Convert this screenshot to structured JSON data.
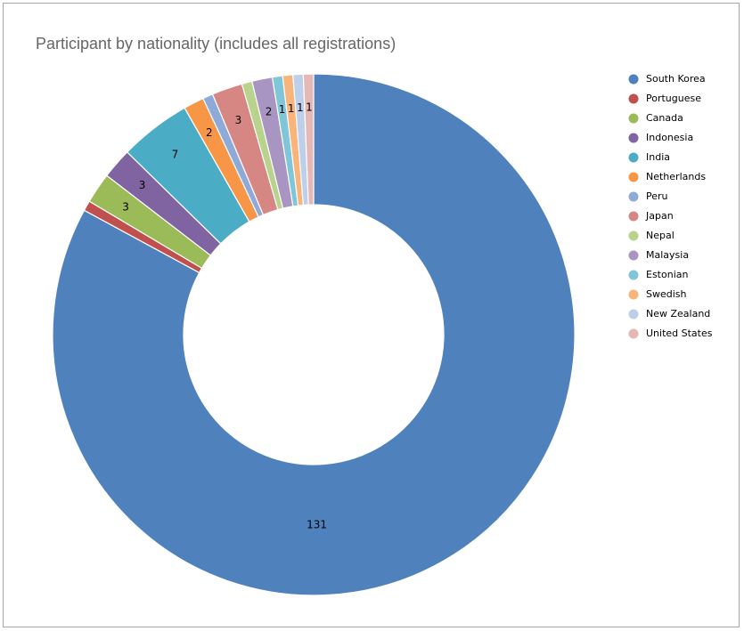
{
  "chart_data": {
    "type": "donut",
    "title": "Participant by nationality (includes all registrations)",
    "legend_position": "right",
    "categories": [
      "South Korea",
      "Portuguese",
      "Canada",
      "Indonesia",
      "India",
      "Netherlands",
      "Peru",
      "Japan",
      "Nepal",
      "Malaysia",
      "Estonian",
      "Swedish",
      "New Zealand",
      "United States"
    ],
    "values": [
      131,
      1,
      3,
      3,
      7,
      2,
      1,
      3,
      1,
      2,
      1,
      1,
      1,
      1
    ],
    "data_labels": [
      "131",
      "",
      "3",
      "3",
      "7",
      "2",
      "",
      "3",
      "",
      "2",
      "1",
      "1",
      "1",
      "1"
    ],
    "colors": [
      "#4f81bd",
      "#c0504d",
      "#9bbb59",
      "#8064a2",
      "#4bacc6",
      "#f79646",
      "#8eaad8",
      "#d68784",
      "#b9d28c",
      "#a895c2",
      "#7fc6d8",
      "#f9b47b",
      "#bdcfea",
      "#e5b8b6"
    ]
  }
}
